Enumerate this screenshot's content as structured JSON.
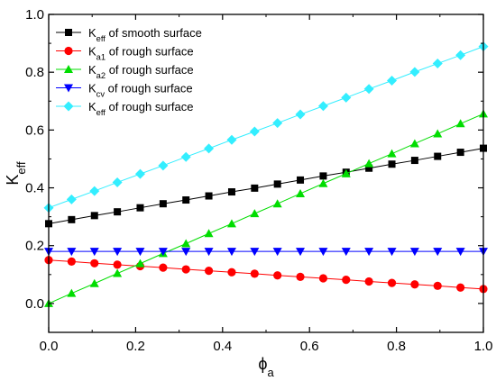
{
  "chart_data": {
    "type": "line",
    "xlabel": {
      "main": "ϕ",
      "sub": "a"
    },
    "ylabel": {
      "main": "K",
      "sub": "eff"
    },
    "xlim": [
      0.0,
      1.0
    ],
    "ylim": [
      -0.1,
      1.0
    ],
    "x_ticks": [
      "0.0",
      "0.2",
      "0.4",
      "0.6",
      "0.8",
      "1.0"
    ],
    "y_ticks": [
      "0.0",
      "0.2",
      "0.4",
      "0.6",
      "0.8",
      "1.0"
    ],
    "x_tick_values": [
      0.0,
      0.2,
      0.4,
      0.6,
      0.8,
      1.0
    ],
    "y_tick_values": [
      0.0,
      0.2,
      0.4,
      0.6,
      0.8,
      1.0
    ],
    "grid": false,
    "legend_position": "top-left",
    "x": [
      0.0,
      0.0526,
      0.1053,
      0.1579,
      0.2105,
      0.2632,
      0.3158,
      0.3684,
      0.4211,
      0.4737,
      0.5263,
      0.5789,
      0.6316,
      0.6842,
      0.7368,
      0.7895,
      0.8421,
      0.8947,
      0.9474,
      1.0
    ],
    "series": [
      {
        "legend": {
          "main": "K",
          "sub": "eff",
          "rest": " of smooth surface"
        },
        "color": "#000000",
        "marker": "square",
        "values": [
          0.276,
          0.29,
          0.304,
          0.317,
          0.331,
          0.345,
          0.358,
          0.372,
          0.386,
          0.399,
          0.413,
          0.427,
          0.441,
          0.454,
          0.468,
          0.482,
          0.495,
          0.509,
          0.523,
          0.537
        ]
      },
      {
        "legend": {
          "main": "K",
          "sub": "a1",
          "rest": " of rough surface"
        },
        "color": "#ff0000",
        "marker": "circle",
        "values": [
          0.15,
          0.145,
          0.139,
          0.134,
          0.129,
          0.124,
          0.118,
          0.113,
          0.108,
          0.103,
          0.097,
          0.092,
          0.087,
          0.082,
          0.076,
          0.071,
          0.066,
          0.061,
          0.055,
          0.05
        ]
      },
      {
        "legend": {
          "main": "K",
          "sub": "a2",
          "rest": " of rough surface"
        },
        "color": "#00dd00",
        "marker": "triangle-up",
        "values": [
          0.0,
          0.035,
          0.069,
          0.104,
          0.138,
          0.173,
          0.207,
          0.242,
          0.276,
          0.311,
          0.345,
          0.38,
          0.415,
          0.449,
          0.484,
          0.518,
          0.553,
          0.587,
          0.622,
          0.656
        ]
      },
      {
        "legend": {
          "main": "K",
          "sub": "cv",
          "rest": " of rough surface"
        },
        "color": "#0000ff",
        "marker": "triangle-down",
        "values": [
          0.18,
          0.18,
          0.18,
          0.18,
          0.18,
          0.18,
          0.18,
          0.18,
          0.18,
          0.18,
          0.18,
          0.18,
          0.18,
          0.18,
          0.18,
          0.18,
          0.18,
          0.18,
          0.18,
          0.18
        ]
      },
      {
        "legend": {
          "main": "K",
          "sub": "eff",
          "rest": " of rough surface"
        },
        "color": "#33eeff",
        "marker": "diamond",
        "values": [
          0.331,
          0.36,
          0.389,
          0.419,
          0.448,
          0.477,
          0.507,
          0.536,
          0.566,
          0.595,
          0.624,
          0.654,
          0.683,
          0.712,
          0.742,
          0.771,
          0.801,
          0.83,
          0.859,
          0.889
        ]
      }
    ]
  }
}
